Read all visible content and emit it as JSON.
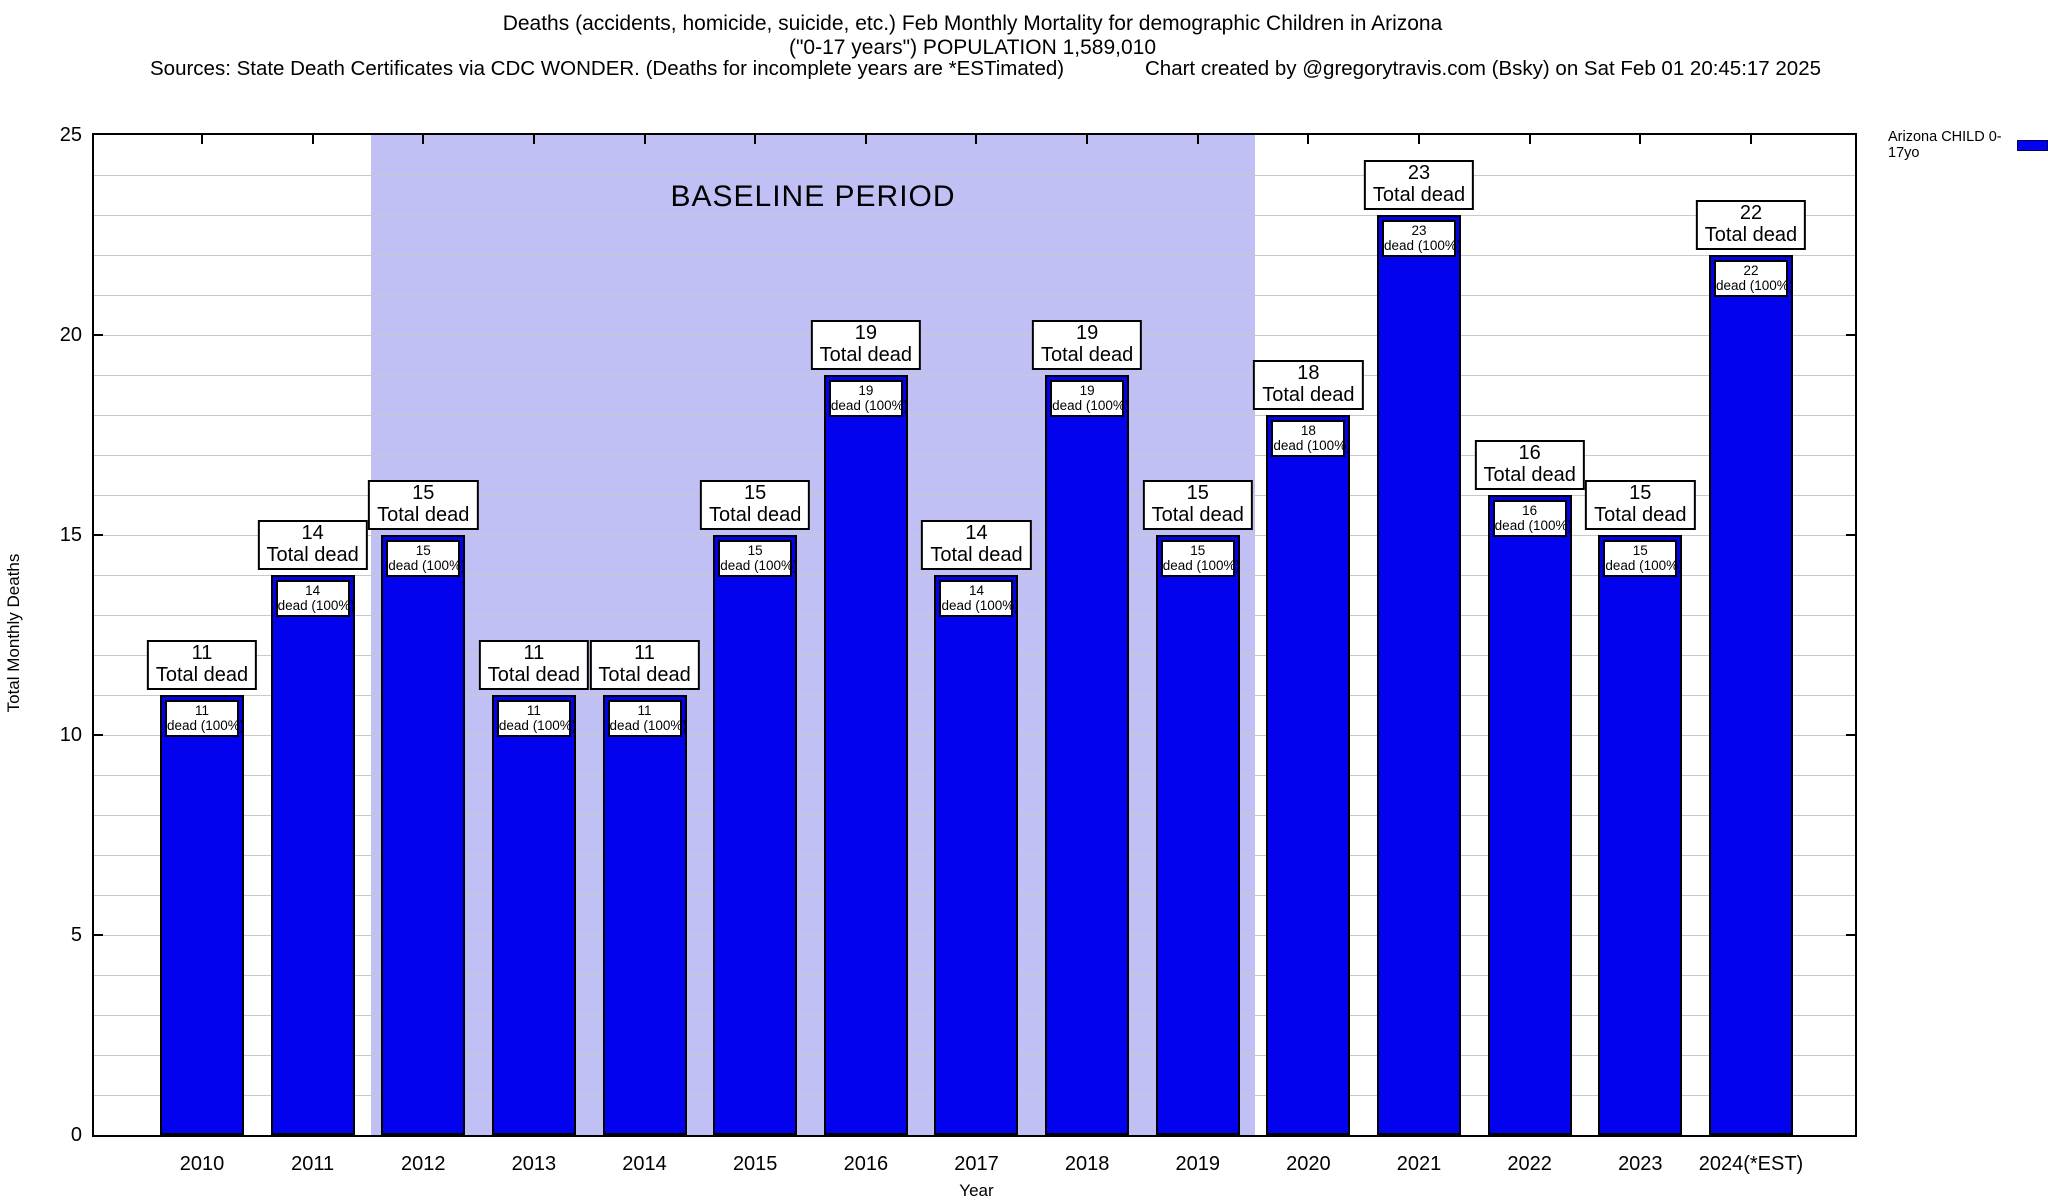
{
  "header": {
    "title_line1": "Deaths (accidents, homicide, suicide, etc.) Feb Monthly Mortality for demographic Children in Arizona",
    "title_line2": "(\"0-17 years\") POPULATION 1,589,010",
    "sources": "Sources: State Death Certificates via CDC WONDER. (Deaths for incomplete years are *ESTimated)",
    "credit": "Chart created by @gregorytravis.com (Bsky) on Sat Feb 01 20:45:17 2025"
  },
  "legend": {
    "label": "Arizona CHILD 0-17yo",
    "swatch_color": "#0202ee"
  },
  "chart_data": {
    "type": "bar",
    "title": "Deaths (accidents, homicide, suicide, etc.) Feb Monthly Mortality for demographic Children in Arizona (\"0-17 years\") POPULATION 1,589,010",
    "xlabel": "Year",
    "ylabel": "Total Monthly Deaths",
    "ylim": [
      0,
      25
    ],
    "yticks": [
      0,
      5,
      10,
      15,
      20,
      25
    ],
    "minor_grid_step": 1,
    "grid": true,
    "legend_position": "top-right",
    "categories": [
      "2010",
      "2011",
      "2012",
      "2013",
      "2014",
      "2015",
      "2016",
      "2017",
      "2018",
      "2019",
      "2020",
      "2021",
      "2022",
      "2023",
      "2024(*EST)"
    ],
    "series": [
      {
        "name": "Arizona CHILD 0-17yo",
        "values": [
          11,
          14,
          15,
          11,
          11,
          15,
          19,
          14,
          19,
          15,
          18,
          23,
          16,
          15,
          22
        ]
      }
    ],
    "bar_color": "#0202ee",
    "bar_outer_label_suffix": "Total dead",
    "bar_inner_label_suffix": "dead (100%)",
    "baseline_band": {
      "label": "BASELINE PERIOD",
      "from_category": "2012",
      "to_category": "2019",
      "fill": "#c0c0f4"
    }
  }
}
